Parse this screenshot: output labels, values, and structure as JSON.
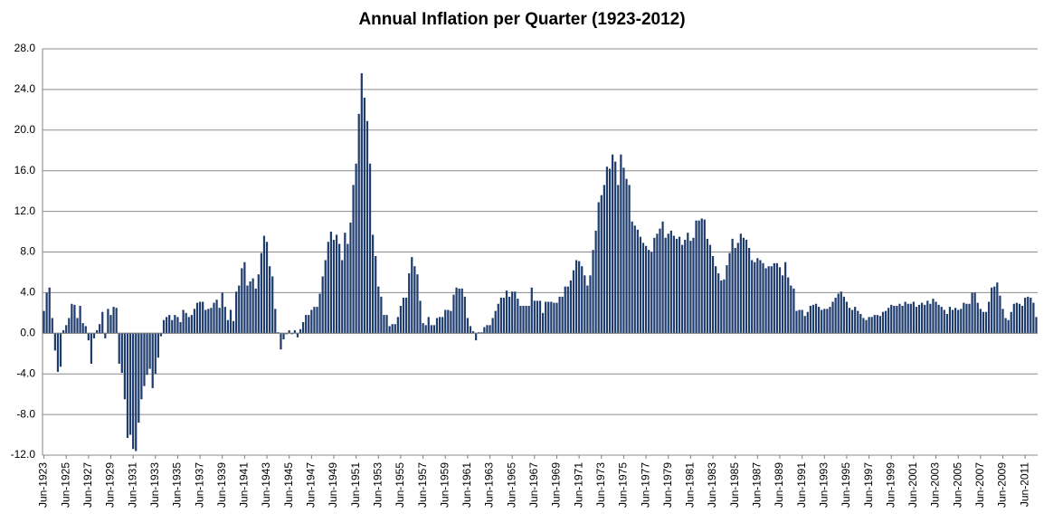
{
  "chart_data": {
    "type": "bar",
    "title": "Annual Inflation per Quarter (1923-2012)",
    "categories": [
      "Jun-1923",
      null,
      null,
      null,
      null,
      null,
      null,
      null,
      "Jun-1925",
      null,
      null,
      null,
      null,
      null,
      null,
      null,
      "Jun-1927",
      null,
      null,
      null,
      null,
      null,
      null,
      null,
      "Jun-1929",
      null,
      null,
      null,
      null,
      null,
      null,
      null,
      "Jun-1931",
      null,
      null,
      null,
      null,
      null,
      null,
      null,
      "Jun-1933",
      null,
      null,
      null,
      null,
      null,
      null,
      null,
      "Jun-1935",
      null,
      null,
      null,
      null,
      null,
      null,
      null,
      "Jun-1937",
      null,
      null,
      null,
      null,
      null,
      null,
      null,
      "Jun-1939",
      null,
      null,
      null,
      null,
      null,
      null,
      null,
      "Jun-1941",
      null,
      null,
      null,
      null,
      null,
      null,
      null,
      "Jun-1943",
      null,
      null,
      null,
      null,
      null,
      null,
      null,
      "Jun-1945",
      null,
      null,
      null,
      null,
      null,
      null,
      null,
      "Jun-1947",
      null,
      null,
      null,
      null,
      null,
      null,
      null,
      "Jun-1949",
      null,
      null,
      null,
      null,
      null,
      null,
      null,
      "Jun-1951",
      null,
      null,
      null,
      null,
      null,
      null,
      null,
      "Jun-1953",
      null,
      null,
      null,
      null,
      null,
      null,
      null,
      "Jun-1955",
      null,
      null,
      null,
      null,
      null,
      null,
      null,
      "Jun-1957",
      null,
      null,
      null,
      null,
      null,
      null,
      null,
      "Jun-1959",
      null,
      null,
      null,
      null,
      null,
      null,
      null,
      "Jun-1961",
      null,
      null,
      null,
      null,
      null,
      null,
      null,
      "Jun-1963",
      null,
      null,
      null,
      null,
      null,
      null,
      null,
      "Jun-1965",
      null,
      null,
      null,
      null,
      null,
      null,
      null,
      "Jun-1967",
      null,
      null,
      null,
      null,
      null,
      null,
      null,
      "Jun-1969",
      null,
      null,
      null,
      null,
      null,
      null,
      null,
      "Jun-1971",
      null,
      null,
      null,
      null,
      null,
      null,
      null,
      "Jun-1973",
      null,
      null,
      null,
      null,
      null,
      null,
      null,
      "Jun-1975",
      null,
      null,
      null,
      null,
      null,
      null,
      null,
      "Jun-1977",
      null,
      null,
      null,
      null,
      null,
      null,
      null,
      "Jun-1979",
      null,
      null,
      null,
      null,
      null,
      null,
      null,
      "Jun-1981",
      null,
      null,
      null,
      null,
      null,
      null,
      null,
      "Jun-1983",
      null,
      null,
      null,
      null,
      null,
      null,
      null,
      "Jun-1985",
      null,
      null,
      null,
      null,
      null,
      null,
      null,
      "Jun-1987",
      null,
      null,
      null,
      null,
      null,
      null,
      null,
      "Jun-1989",
      null,
      null,
      null,
      null,
      null,
      null,
      null,
      "Jun-1991",
      null,
      null,
      null,
      null,
      null,
      null,
      null,
      "Jun-1993",
      null,
      null,
      null,
      null,
      null,
      null,
      null,
      "Jun-1995",
      null,
      null,
      null,
      null,
      null,
      null,
      null,
      "Jun-1997",
      null,
      null,
      null,
      null,
      null,
      null,
      null,
      "Jun-1999",
      null,
      null,
      null,
      null,
      null,
      null,
      null,
      "Jun-2001",
      null,
      null,
      null,
      null,
      null,
      null,
      null,
      "Jun-2003",
      null,
      null,
      null,
      null,
      null,
      null,
      null,
      "Jun-2005",
      null,
      null,
      null,
      null,
      null,
      null,
      null,
      "Jun-2007",
      null,
      null,
      null,
      null,
      null,
      null,
      null,
      "Jun-2009",
      null,
      null,
      null,
      null,
      null,
      null,
      null,
      "Jun-2011",
      null,
      null,
      null,
      null
    ],
    "values": [
      2.2,
      4.0,
      4.5,
      1.5,
      -1.7,
      -3.8,
      -3.3,
      0.3,
      0.8,
      1.5,
      2.9,
      2.8,
      1.5,
      2.7,
      1.0,
      0.7,
      -0.7,
      -3.0,
      -0.5,
      0.3,
      0.9,
      2.1,
      -0.5,
      2.4,
      1.8,
      2.6,
      2.5,
      -3.0,
      -3.9,
      -6.5,
      -10.3,
      -10.0,
      -11.4,
      -11.6,
      -8.8,
      -6.5,
      -5.2,
      -4.1,
      -3.5,
      -5.4,
      -4.0,
      -2.4,
      -0.3,
      1.3,
      1.6,
      1.8,
      1.3,
      1.8,
      1.6,
      1.1,
      2.3,
      2.0,
      1.6,
      1.8,
      2.4,
      3.0,
      3.1,
      3.1,
      2.3,
      2.4,
      2.5,
      3.0,
      3.3,
      2.5,
      4.0,
      2.6,
      1.3,
      2.3,
      1.2,
      4.1,
      4.7,
      6.4,
      7.0,
      4.7,
      5.1,
      5.4,
      4.4,
      5.8,
      7.9,
      9.6,
      9.0,
      6.6,
      5.6,
      2.4,
      0.1,
      -1.6,
      -0.6,
      -0.1,
      0.3,
      -0.1,
      0.3,
      -0.4,
      0.4,
      1.1,
      1.8,
      1.8,
      2.3,
      2.6,
      2.6,
      3.9,
      5.6,
      7.2,
      9.0,
      10.0,
      9.2,
      9.7,
      8.8,
      7.2,
      9.9,
      8.8,
      10.9,
      14.6,
      16.7,
      21.6,
      25.6,
      23.2,
      20.9,
      16.7,
      9.7,
      7.6,
      4.6,
      3.6,
      1.8,
      1.8,
      0.7,
      0.9,
      0.9,
      1.6,
      2.7,
      3.5,
      3.5,
      5.9,
      7.5,
      6.6,
      5.8,
      3.2,
      1.0,
      0.8,
      1.6,
      0.8,
      0.8,
      1.5,
      1.6,
      1.6,
      2.3,
      2.3,
      2.2,
      3.8,
      4.5,
      4.4,
      4.4,
      3.6,
      1.5,
      0.7,
      0.2,
      -0.7,
      0.1,
      0.1,
      0.6,
      0.8,
      0.8,
      1.5,
      2.2,
      2.9,
      3.5,
      3.5,
      4.2,
      3.6,
      4.1,
      4.1,
      3.4,
      2.7,
      2.7,
      2.7,
      2.7,
      4.5,
      3.2,
      3.2,
      3.2,
      2.0,
      3.1,
      3.1,
      3.1,
      3.0,
      3.0,
      3.6,
      3.6,
      4.6,
      4.6,
      5.2,
      6.2,
      7.2,
      7.1,
      6.6,
      5.7,
      4.7,
      5.7,
      8.2,
      10.1,
      12.9,
      13.6,
      14.6,
      16.4,
      16.2,
      17.6,
      16.9,
      14.6,
      17.6,
      16.3,
      15.2,
      14.6,
      11.0,
      10.6,
      10.2,
      9.5,
      8.9,
      8.6,
      8.2,
      8.0,
      9.4,
      9.8,
      10.3,
      11.0,
      9.4,
      9.8,
      10.1,
      9.6,
      9.3,
      9.5,
      8.7,
      9.2,
      9.9,
      9.1,
      9.4,
      11.1,
      11.1,
      11.3,
      11.2,
      9.3,
      8.7,
      7.6,
      6.6,
      5.9,
      5.2,
      5.3,
      6.7,
      7.9,
      9.3,
      8.4,
      8.9,
      9.8,
      9.4,
      9.2,
      8.4,
      7.2,
      7.0,
      7.4,
      7.2,
      6.9,
      6.4,
      6.6,
      6.6,
      6.9,
      6.9,
      6.5,
      5.7,
      7.0,
      5.5,
      4.7,
      4.4,
      2.2,
      2.3,
      2.3,
      1.7,
      2.1,
      2.7,
      2.8,
      2.9,
      2.6,
      2.3,
      2.4,
      2.4,
      2.6,
      3.1,
      3.5,
      3.9,
      4.1,
      3.6,
      3.1,
      2.5,
      2.3,
      2.6,
      2.2,
      1.9,
      1.5,
      1.3,
      1.6,
      1.6,
      1.8,
      1.8,
      1.7,
      2.1,
      2.2,
      2.5,
      2.8,
      2.7,
      2.7,
      2.9,
      2.7,
      3.1,
      2.9,
      2.9,
      3.1,
      2.6,
      2.8,
      3.0,
      2.8,
      3.2,
      2.9,
      3.4,
      3.1,
      2.8,
      2.6,
      2.3,
      1.9,
      2.6,
      2.3,
      2.5,
      2.3,
      2.4,
      3.0,
      2.9,
      2.9,
      4.0,
      4.0,
      3.0,
      2.4,
      2.1,
      2.1,
      3.1,
      4.5,
      4.6,
      5.0,
      3.7,
      2.4,
      1.5,
      1.3,
      2.1,
      2.9,
      3.0,
      2.9,
      2.7,
      3.5,
      3.6,
      3.5,
      3.0,
      1.6
    ],
    "color": "#1f3c6e",
    "ylim": [
      -12,
      28
    ],
    "yticks": [
      {
        "value": -12,
        "label": "-12.0"
      },
      {
        "value": -8,
        "label": "-8.0"
      },
      {
        "value": -4,
        "label": "-4.0"
      },
      {
        "value": 0,
        "label": "0.0"
      },
      {
        "value": 4,
        "label": "4.0"
      },
      {
        "value": 8,
        "label": "8.0"
      },
      {
        "value": 12,
        "label": "12.0"
      },
      {
        "value": 16,
        "label": "16.0"
      },
      {
        "value": 20,
        "label": "20.0"
      },
      {
        "value": 24,
        "label": "24.0"
      },
      {
        "value": 28,
        "label": "28.0"
      }
    ],
    "grid": true
  }
}
